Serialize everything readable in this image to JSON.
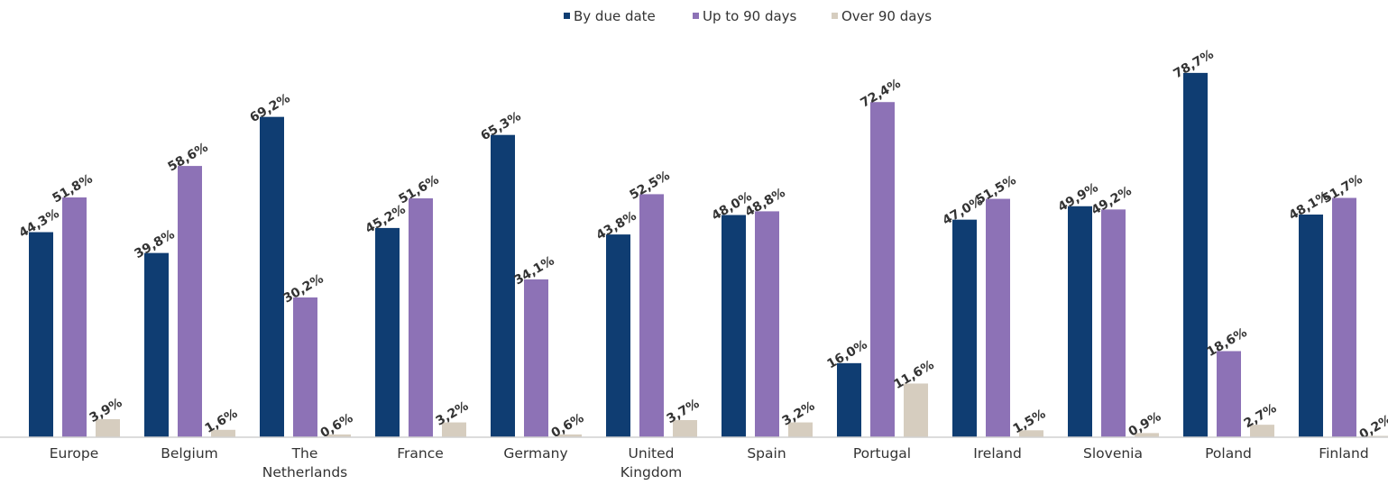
{
  "chart_data": {
    "type": "bar",
    "title": "",
    "xlabel": "",
    "ylabel": "",
    "ylim": [
      0,
      90
    ],
    "grid": false,
    "legend_position": "top",
    "categories": [
      "Europe",
      "Belgium",
      "The Netherlands",
      "France",
      "Germany",
      "United Kingdom",
      "Spain",
      "Portugal",
      "Ireland",
      "Slovenia",
      "Poland",
      "Finland"
    ],
    "category_lines": [
      [
        "Europe"
      ],
      [
        "Belgium"
      ],
      [
        "The",
        "Netherlands"
      ],
      [
        "France"
      ],
      [
        "Germany"
      ],
      [
        "United",
        "Kingdom"
      ],
      [
        "Spain"
      ],
      [
        "Portugal"
      ],
      [
        "Ireland"
      ],
      [
        "Slovenia"
      ],
      [
        "Poland"
      ],
      [
        "Finland"
      ]
    ],
    "series": [
      {
        "name": "By due date",
        "color": "#0f3d72",
        "values": [
          44.3,
          39.8,
          69.2,
          45.2,
          65.3,
          43.8,
          48.0,
          16.0,
          47.0,
          49.9,
          78.7,
          48.1
        ],
        "labels": [
          "44,3%",
          "39,8%",
          "69,2%",
          "45,2%",
          "65,3%",
          "43,8%",
          "48,0%",
          "16,0%",
          "47,0%",
          "49,9%",
          "78,7%",
          "48,1%"
        ]
      },
      {
        "name": "Up to 90 days",
        "color": "#8d72b6",
        "values": [
          51.8,
          58.6,
          30.2,
          51.6,
          34.1,
          52.5,
          48.8,
          72.4,
          51.5,
          49.2,
          18.6,
          51.7
        ],
        "labels": [
          "51,8%",
          "58,6%",
          "30,2%",
          "51,6%",
          "34,1%",
          "52,5%",
          "48,8%",
          "72,4%",
          "51,5%",
          "49,2%",
          "18,6%",
          "51,7%"
        ]
      },
      {
        "name": "Over 90 days",
        "color": "#d6cdbf",
        "values": [
          3.9,
          1.6,
          0.6,
          3.2,
          0.6,
          3.7,
          3.2,
          11.6,
          1.5,
          0.9,
          2.7,
          0.2
        ],
        "labels": [
          "3,9%",
          "1,6%",
          "0,6%",
          "3,2%",
          "0,6%",
          "3,7%",
          "3,2%",
          "11,6%",
          "1,5%",
          "0,9%",
          "2,7%",
          "0,2%"
        ]
      }
    ]
  }
}
